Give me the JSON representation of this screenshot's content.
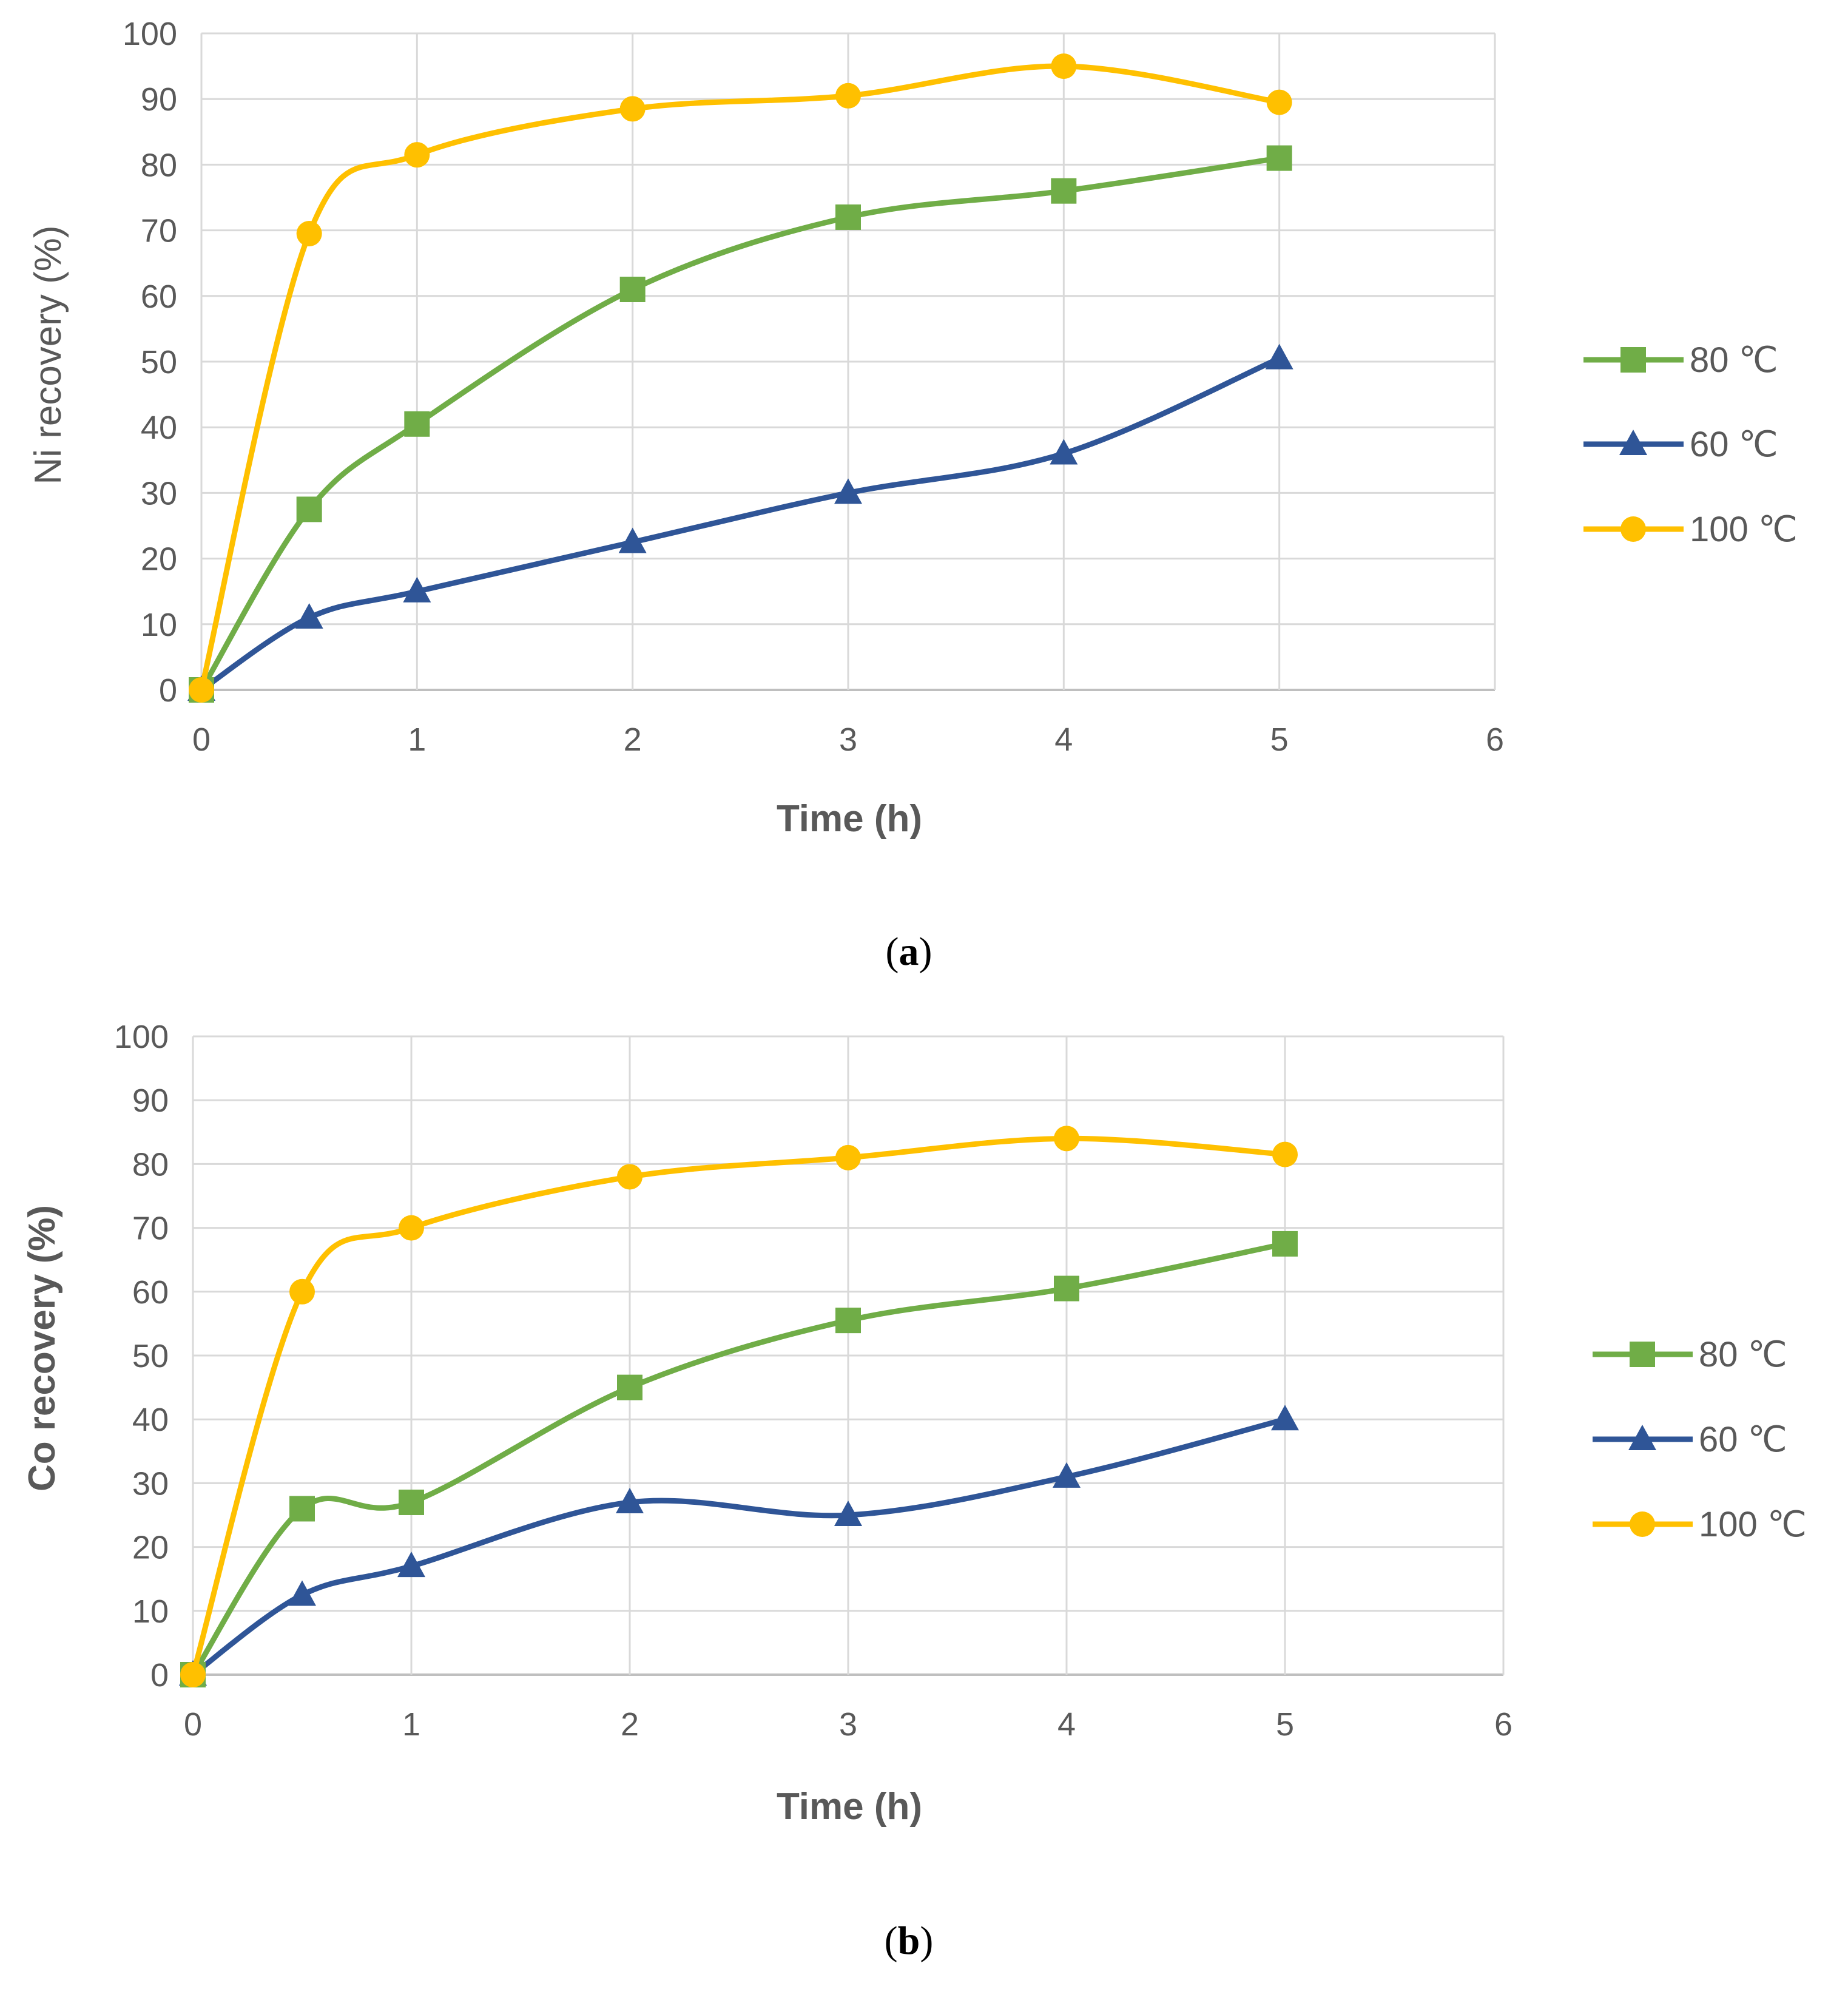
{
  "colors": {
    "80": "#70AD47",
    "60": "#2F5597",
    "100": "#FFC000",
    "grid": "#D9D9D9",
    "axis": "#BFBFBF"
  },
  "chart_data": [
    {
      "type": "line",
      "panel": "a",
      "caption_letter": "a",
      "xlabel": "Time (h)",
      "ylabel": "Ni recovery (%)",
      "xlim": [
        0,
        6
      ],
      "ylim": [
        0,
        100
      ],
      "xticks": [
        "0",
        "1",
        "2",
        "3",
        "4",
        "5",
        "6"
      ],
      "yticks": [
        "0",
        "10",
        "20",
        "30",
        "40",
        "50",
        "60",
        "70",
        "80",
        "90",
        "100"
      ],
      "x": [
        0,
        0.5,
        1,
        2,
        3,
        4,
        5
      ],
      "series": [
        {
          "name": "80 ℃",
          "marker": "square",
          "color_key": "80",
          "values": [
            0,
            27.5,
            40.5,
            61,
            72,
            76,
            81
          ]
        },
        {
          "name": "60 ℃",
          "marker": "triangle",
          "color_key": "60",
          "values": [
            0,
            11,
            15,
            22.5,
            30,
            36,
            50.5
          ]
        },
        {
          "name": "100 ℃",
          "marker": "circle",
          "color_key": "100",
          "values": [
            0,
            69.5,
            81.5,
            88.5,
            90.5,
            95,
            89.5
          ]
        }
      ]
    },
    {
      "type": "line",
      "panel": "b",
      "caption_letter": "b",
      "xlabel": "Time (h)",
      "ylabel": "Co recovery (%)",
      "xlim": [
        0,
        6
      ],
      "ylim": [
        0,
        100
      ],
      "xticks": [
        "0",
        "1",
        "2",
        "3",
        "4",
        "5",
        "6"
      ],
      "yticks": [
        "0",
        "10",
        "20",
        "30",
        "40",
        "50",
        "60",
        "70",
        "80",
        "90",
        "100"
      ],
      "x": [
        0,
        0.5,
        1,
        2,
        3,
        4,
        5
      ],
      "series": [
        {
          "name": "80 ℃",
          "marker": "square",
          "color_key": "80",
          "values": [
            0,
            26,
            27,
            45,
            55.5,
            60.5,
            67.5
          ]
        },
        {
          "name": "60 ℃",
          "marker": "triangle",
          "color_key": "60",
          "values": [
            0,
            12.5,
            17,
            27,
            25,
            31,
            40
          ]
        },
        {
          "name": "100 ℃",
          "marker": "circle",
          "color_key": "100",
          "values": [
            0,
            60,
            70,
            78,
            81,
            84,
            81.5
          ]
        }
      ]
    }
  ]
}
